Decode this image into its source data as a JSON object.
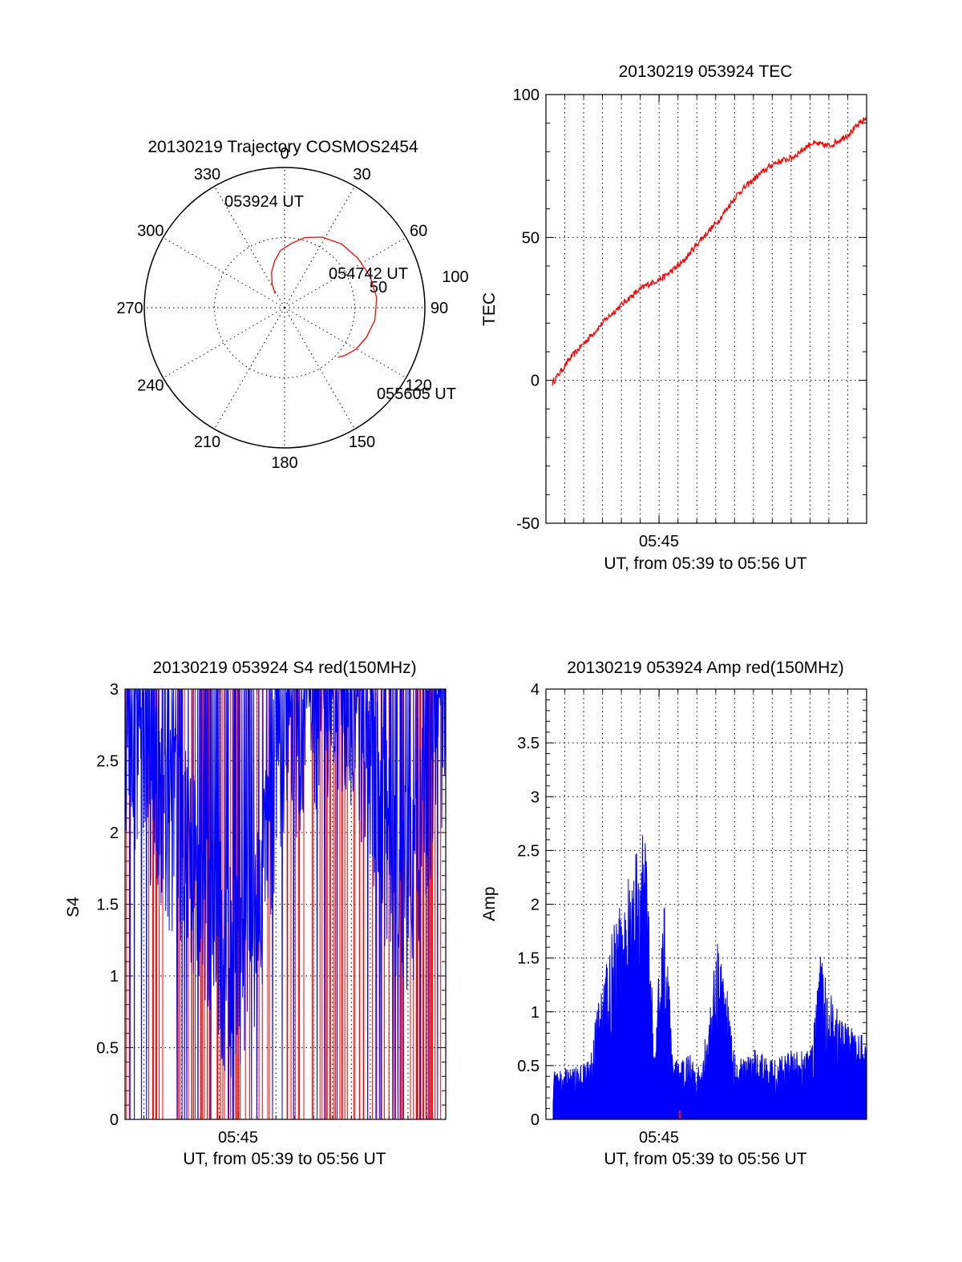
{
  "chart_data": [
    {
      "id": "trajectory",
      "type": "polar",
      "title": "20130219 Trajectory COSMOS2454",
      "angle_labels": [
        "0",
        "30",
        "60",
        "90",
        "120",
        "150",
        "180",
        "210",
        "240",
        "270",
        "300",
        "330"
      ],
      "radial_labels": [
        "50",
        "100"
      ],
      "radial_max": 100,
      "trace_color": "#ff0000",
      "trajectory": {
        "azimuth_deg": [
          326,
          332,
          340,
          348,
          356,
          6,
          16,
          28,
          42,
          56,
          70,
          84,
          98,
          110,
          120,
          128,
          133
        ],
        "elevation_deg": [
          78,
          71,
          63,
          56,
          49,
          44,
          38,
          33,
          29,
          27,
          25,
          24,
          25,
          28,
          31,
          35,
          38
        ]
      },
      "annotations": [
        "053924 UT",
        "054742 UT",
        "055605 UT"
      ]
    },
    {
      "id": "tec",
      "type": "line",
      "title": "20130219 053924 TEC",
      "xlabel": "UT, from 05:39 to 05:56 UT",
      "ylabel": "TEC",
      "x_tick_label": "05:45",
      "ylim": [
        -50,
        100
      ],
      "yticks": [
        -50,
        0,
        50,
        100
      ],
      "series_color": "#ff0000",
      "x_minutes_after_0539": [
        0,
        1,
        2,
        3,
        4,
        5,
        6,
        7,
        8,
        9,
        10,
        11,
        12,
        13,
        14,
        15,
        16,
        17
      ],
      "values": [
        -1,
        8,
        15,
        22,
        28,
        33,
        36,
        41,
        49,
        56,
        65,
        71,
        76,
        78,
        83,
        82,
        86,
        92
      ]
    },
    {
      "id": "s4",
      "type": "line",
      "title": "20130219 053924 S4 red(150MHz)",
      "xlabel": "UT, from 05:39 to 05:56 UT",
      "ylabel": "S4",
      "x_tick_label": "05:45",
      "ylim": [
        0,
        3
      ],
      "yticks": [
        0,
        0.5,
        1,
        1.5,
        2,
        2.5,
        3
      ],
      "series": [
        {
          "name": "red",
          "color": "#ff0000",
          "x_minutes_after_0539": [
            0,
            2,
            4,
            6,
            8,
            10,
            12,
            14,
            16,
            17
          ],
          "values": [
            3,
            0,
            3,
            0,
            3,
            0,
            3,
            0,
            3,
            0
          ]
        },
        {
          "name": "blue",
          "color": "#0000ff",
          "x_minutes_after_0539": [
            0,
            1,
            2,
            3,
            4,
            5,
            6,
            7,
            8,
            9,
            10,
            11,
            12,
            13,
            14,
            15,
            16,
            17
          ],
          "values": [
            2.5,
            2.2,
            1.9,
            1.6,
            1.3,
            0.9,
            0.6,
            1.2,
            2.0,
            2.4,
            2.6,
            2.7,
            2.5,
            2.2,
            1.5,
            1.2,
            2.0,
            2.6
          ]
        }
      ]
    },
    {
      "id": "amp",
      "type": "area",
      "title": "20130219 053924 Amp red(150MHz)",
      "xlabel": "UT, from 05:39 to 05:56 UT",
      "ylabel": "Amp",
      "x_tick_label": "05:45",
      "ylim": [
        0,
        4
      ],
      "yticks": [
        0,
        0.5,
        1,
        1.5,
        2,
        2.5,
        3,
        3.5,
        4
      ],
      "series_color": "#0000ff",
      "x_minutes_after_0539": [
        0,
        1,
        2,
        2.5,
        3,
        4,
        5,
        5.5,
        6,
        6.5,
        7,
        7.5,
        8,
        9,
        10,
        11,
        12,
        13,
        14,
        14.5,
        15,
        16,
        17
      ],
      "values": [
        0.4,
        0.45,
        0.5,
        1.1,
        1.5,
        2.0,
        2.5,
        0.6,
        2.0,
        0.5,
        0.5,
        0.6,
        0.4,
        1.6,
        0.5,
        0.6,
        0.5,
        0.6,
        0.6,
        1.4,
        1.1,
        0.8,
        0.7
      ]
    }
  ]
}
